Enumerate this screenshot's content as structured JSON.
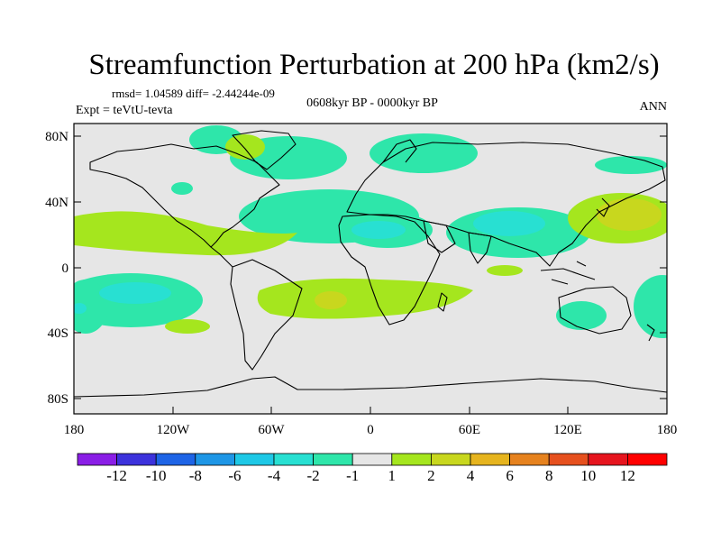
{
  "title": "Streamfunction Perturbation at 200 hPa (km2/s)",
  "stats_line": "rmsd= 1.04589 diff= -2.44244e-09",
  "left_label": "Expt = teVtU-tevta",
  "center_label": "0608kyr BP - 0000kyr BP",
  "right_label": "ANN",
  "lat_ticks": [
    "80N",
    "40N",
    "0",
    "40S",
    "80S"
  ],
  "lon_ticks": [
    "180",
    "120W",
    "60W",
    "0",
    "60E",
    "120E",
    "180"
  ],
  "colorbar": {
    "labels": [
      "-12",
      "-10",
      "-8",
      "-6",
      "-4",
      "-2",
      "-1",
      "1",
      "2",
      "4",
      "6",
      "8",
      "10",
      "12"
    ],
    "colors": [
      "#8a1ee6",
      "#3c32dc",
      "#1e64e6",
      "#1e96e6",
      "#1ec8e6",
      "#28e0d2",
      "#2ee6aa",
      "#e6e6e6",
      "#a5e61e",
      "#c8d71e",
      "#e6b41e",
      "#e6821e",
      "#e6501e",
      "#e6141e",
      "#ff0000"
    ]
  },
  "colors": {
    "neutral": "#e6e6e6",
    "neg1": "#2ee6aa",
    "neg2": "#28e0d2",
    "pos1": "#a5e61e",
    "pos2": "#c8d71e"
  }
}
